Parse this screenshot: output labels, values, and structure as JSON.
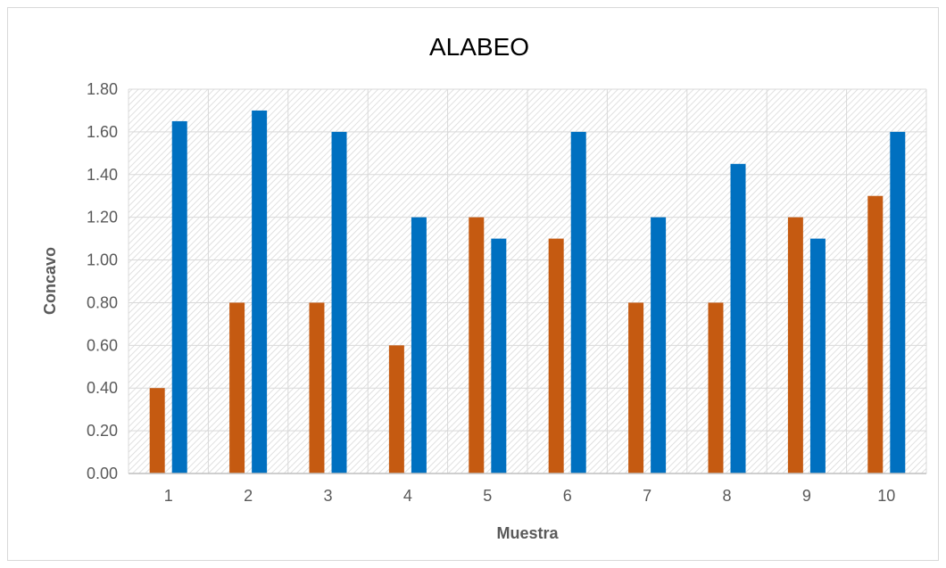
{
  "chart_data": {
    "type": "bar",
    "title": "ALABEO",
    "xlabel": "Muestra",
    "ylabel": "Concavo",
    "categories": [
      "1",
      "2",
      "3",
      "4",
      "5",
      "6",
      "7",
      "8",
      "9",
      "10"
    ],
    "series": [
      {
        "color": "#C55A11",
        "values": [
          0.4,
          0.8,
          0.8,
          0.6,
          1.2,
          1.1,
          0.8,
          0.8,
          1.2,
          1.3
        ]
      },
      {
        "color": "#0070C0",
        "values": [
          1.65,
          1.7,
          1.6,
          1.2,
          1.1,
          1.6,
          1.2,
          1.45,
          1.1,
          1.6
        ]
      }
    ],
    "ylim": [
      0,
      1.8
    ],
    "yticks": [
      "0.00",
      "0.20",
      "0.40",
      "0.60",
      "0.80",
      "1.00",
      "1.20",
      "1.40",
      "1.60",
      "1.80"
    ],
    "grid": true,
    "legend": "none",
    "plot_background": "hatched"
  }
}
